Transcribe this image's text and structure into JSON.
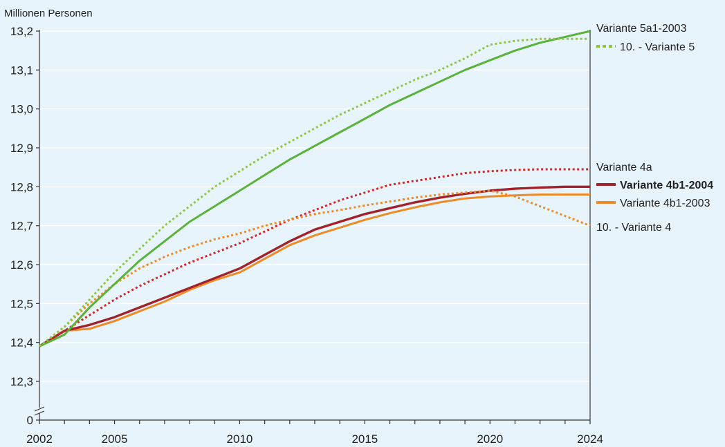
{
  "chart_data": {
    "type": "line",
    "ylabel": "Millionen Personen",
    "xlim": [
      2002,
      2024
    ],
    "ylim": [
      12.3,
      13.2
    ],
    "y_axis_break": true,
    "y_ticks": [
      "0",
      "12,3",
      "12,4",
      "12,5",
      "12,6",
      "12,7",
      "12,8",
      "12,9",
      "13,0",
      "13,1",
      "13,2"
    ],
    "y_tick_values": [
      12.3,
      12.4,
      12.5,
      12.6,
      12.7,
      12.8,
      12.9,
      13.0,
      13.1,
      13.2
    ],
    "x_labeled_ticks": [
      2002,
      2005,
      2010,
      2015,
      2020,
      2024
    ],
    "x_ticks_every_year": true,
    "grid": "horizontal",
    "legend_placement": "right",
    "x": [
      2002,
      2003,
      2004,
      2005,
      2006,
      2007,
      2008,
      2009,
      2010,
      2011,
      2012,
      2013,
      2014,
      2015,
      2016,
      2017,
      2018,
      2019,
      2020,
      2021,
      2022,
      2023,
      2024
    ],
    "series": [
      {
        "name": "Variante 5a1-2003",
        "color": "#5ab339",
        "style": "solid",
        "bold": false,
        "values": [
          12.39,
          12.42,
          12.49,
          12.55,
          12.61,
          12.66,
          12.71,
          12.75,
          12.79,
          12.83,
          12.87,
          12.905,
          12.94,
          12.975,
          13.01,
          13.04,
          13.07,
          13.1,
          13.125,
          13.15,
          13.17,
          13.185,
          13.2
        ]
      },
      {
        "name": "10. - Variante 5",
        "color": "#8fc73e",
        "style": "dotted",
        "bold": false,
        "values": [
          12.39,
          12.44,
          12.51,
          12.58,
          12.64,
          12.7,
          12.75,
          12.8,
          12.84,
          12.88,
          12.915,
          12.95,
          12.985,
          13.015,
          13.045,
          13.075,
          13.1,
          13.13,
          13.165,
          13.175,
          13.18,
          13.18,
          13.18
        ]
      },
      {
        "name": "Variante 4a",
        "color": "#d62728",
        "style": "dotted",
        "bold": false,
        "values": [
          12.39,
          12.43,
          12.47,
          12.51,
          12.545,
          12.575,
          12.605,
          12.63,
          12.655,
          12.685,
          12.715,
          12.74,
          12.765,
          12.785,
          12.805,
          12.815,
          12.825,
          12.835,
          12.84,
          12.843,
          12.845,
          12.845,
          12.845
        ]
      },
      {
        "name": "Variante 4b1-2004",
        "color": "#a3222a",
        "style": "solid",
        "bold": true,
        "values": [
          12.39,
          12.43,
          12.445,
          12.465,
          12.49,
          12.515,
          12.54,
          12.565,
          12.59,
          12.625,
          12.66,
          12.69,
          12.71,
          12.73,
          12.745,
          12.76,
          12.772,
          12.782,
          12.79,
          12.795,
          12.798,
          12.8,
          12.8
        ]
      },
      {
        "name": "Variante 4b1-2003",
        "color": "#f08a24",
        "style": "solid",
        "bold": false,
        "values": [
          12.39,
          12.43,
          12.435,
          12.455,
          12.48,
          12.505,
          12.535,
          12.56,
          12.58,
          12.615,
          12.65,
          12.675,
          12.695,
          12.715,
          12.732,
          12.747,
          12.76,
          12.77,
          12.775,
          12.778,
          12.78,
          12.78,
          12.78
        ]
      },
      {
        "name": "10. - Variante 4",
        "color": "#f08a24",
        "style": "dotted",
        "bold": false,
        "values": [
          12.39,
          12.44,
          12.5,
          12.55,
          12.59,
          12.62,
          12.645,
          12.665,
          12.68,
          12.7,
          12.715,
          12.73,
          12.74,
          12.752,
          12.762,
          12.772,
          12.78,
          12.785,
          12.79,
          12.775,
          12.75,
          12.725,
          12.7
        ]
      }
    ],
    "legend": [
      {
        "label": "Variante 5a1-2003",
        "series": 0,
        "swatch": false,
        "bold": false
      },
      {
        "label": "10. - Variante 5",
        "series": 1,
        "swatch": true,
        "bold": false
      },
      {
        "label": "Variante 4a",
        "series": 2,
        "swatch": false,
        "bold": false
      },
      {
        "label": "Variante 4b1-2004",
        "series": 3,
        "swatch": true,
        "bold": true
      },
      {
        "label": "Variante 4b1-2003",
        "series": 4,
        "swatch": true,
        "bold": false
      },
      {
        "label": "10. - Variante 4",
        "series": 5,
        "swatch": false,
        "bold": false
      }
    ]
  }
}
